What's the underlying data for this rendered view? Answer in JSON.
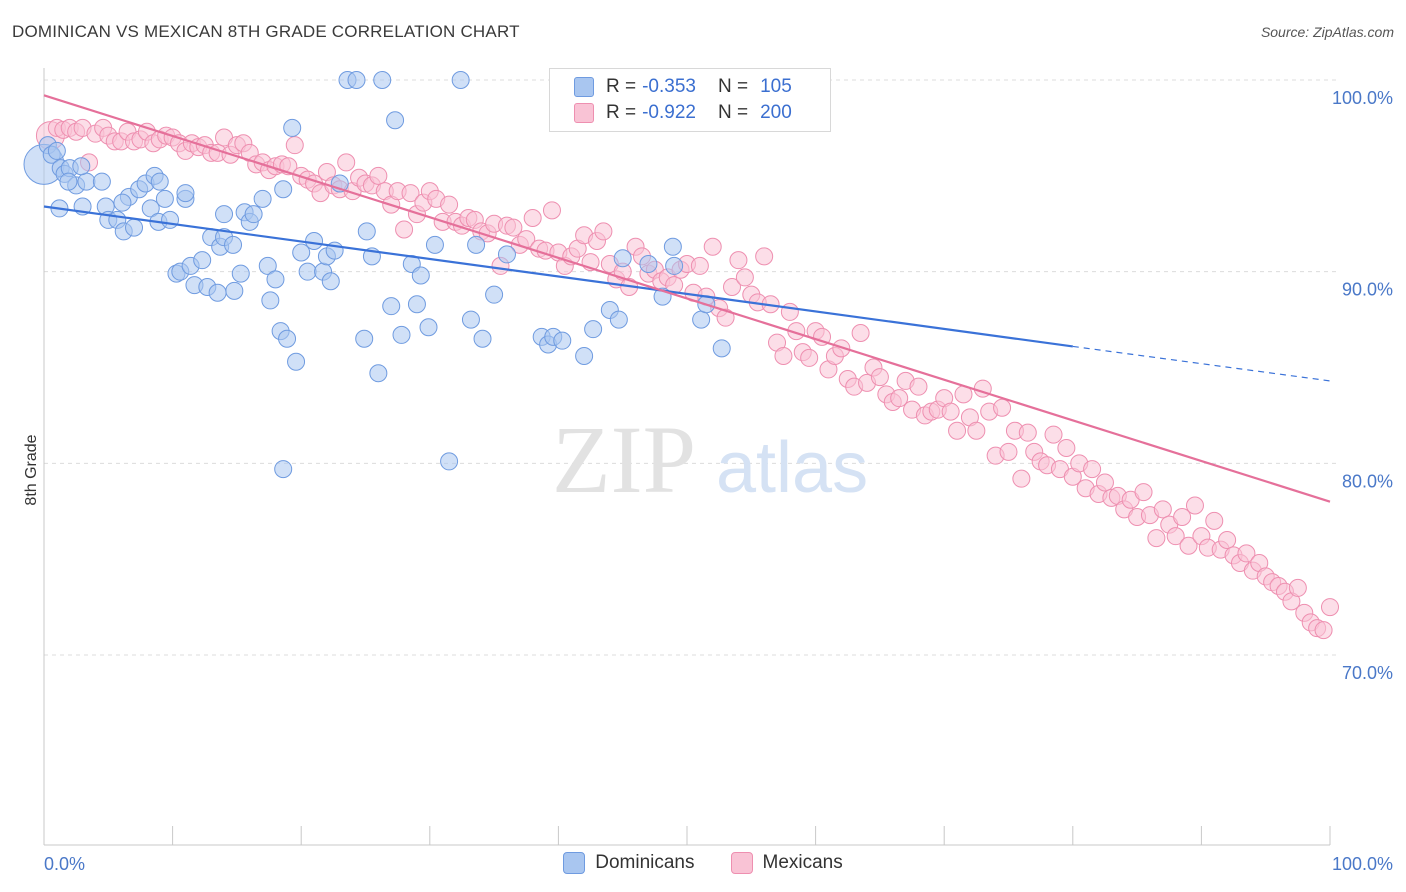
{
  "header": {
    "title": "DOMINICAN VS MEXICAN 8TH GRADE CORRELATION CHART",
    "source": "Source: ZipAtlas.com"
  },
  "watermark": {
    "zip": "ZIP",
    "atlas": "atlas"
  },
  "legend": {
    "rows": [
      {
        "r_label": "R =",
        "r_value": "-0.353",
        "n_label": "N =",
        "n_value": "105",
        "color": "#a9c6f0",
        "border": "#6f9be0"
      },
      {
        "r_label": "R =",
        "r_value": "-0.922",
        "n_label": "N =",
        "n_value": "200",
        "color": "#f9c3d5",
        "border": "#ee8fb0"
      }
    ]
  },
  "bottom_legend": [
    {
      "label": "Dominicans",
      "color": "#a9c6f0",
      "border": "#6f9be0"
    },
    {
      "label": "Mexicans",
      "color": "#f9c3d5",
      "border": "#ee8fb0"
    }
  ],
  "chart_data": {
    "type": "scatter",
    "title": "DOMINICAN VS MEXICAN 8TH GRADE CORRELATION CHART",
    "xlabel": "",
    "ylabel": "8th Grade",
    "x_tick_labels": [
      "0.0%",
      "100.0%"
    ],
    "y_tick_labels": [
      "100.0%",
      "90.0%",
      "80.0%",
      "70.0%"
    ],
    "y_ticks": [
      100,
      90,
      80,
      70
    ],
    "xlim": [
      0,
      100
    ],
    "ylim": [
      60,
      100.5
    ],
    "grid": true,
    "series": [
      {
        "name": "Dominicans",
        "color": "#6f9be0",
        "fill": "#a9c6f0",
        "trend": {
          "x0": 0,
          "y0": 93.4,
          "x1": 80,
          "y1": 86.1,
          "dash_to_x": 100,
          "dash_to_y": 84.3
        },
        "points": [
          [
            0,
            95.6
          ],
          [
            0.3,
            96.6
          ],
          [
            0.6,
            96.1
          ],
          [
            1,
            96.3
          ],
          [
            1.3,
            95.4
          ],
          [
            1.6,
            95.1
          ],
          [
            2,
            95.4
          ],
          [
            2.5,
            94.5
          ],
          [
            3,
            93.4
          ],
          [
            3.3,
            94.7
          ],
          [
            4.5,
            94.7
          ],
          [
            4.8,
            93.4
          ],
          [
            5,
            92.7
          ],
          [
            5.7,
            92.7
          ],
          [
            6.2,
            92.1
          ],
          [
            6.6,
            93.9
          ],
          [
            7,
            92.3
          ],
          [
            7.4,
            94.3
          ],
          [
            7.9,
            94.6
          ],
          [
            8.3,
            93.3
          ],
          [
            8.6,
            95.0
          ],
          [
            8.9,
            92.6
          ],
          [
            9,
            94.7
          ],
          [
            9.4,
            93.8
          ],
          [
            9.8,
            92.7
          ],
          [
            10.3,
            89.9
          ],
          [
            10.6,
            90.0
          ],
          [
            11,
            93.8
          ],
          [
            11,
            94.1
          ],
          [
            11.4,
            90.3
          ],
          [
            11.7,
            89.3
          ],
          [
            12.3,
            90.6
          ],
          [
            12.7,
            89.2
          ],
          [
            13,
            91.8
          ],
          [
            13.7,
            91.3
          ],
          [
            14,
            93.0
          ],
          [
            14,
            91.8
          ],
          [
            14.7,
            91.4
          ],
          [
            14.8,
            89.0
          ],
          [
            15.3,
            89.9
          ],
          [
            15.6,
            93.1
          ],
          [
            16,
            92.6
          ],
          [
            16.3,
            93.0
          ],
          [
            17,
            93.8
          ],
          [
            17.4,
            90.3
          ],
          [
            17.6,
            88.5
          ],
          [
            18,
            89.6
          ],
          [
            18.4,
            86.9
          ],
          [
            18.6,
            94.3
          ],
          [
            18.9,
            86.5
          ],
          [
            19.3,
            97.5
          ],
          [
            19.6,
            85.3
          ],
          [
            20,
            91.0
          ],
          [
            20.5,
            90.0
          ],
          [
            21,
            91.6
          ],
          [
            21.7,
            90.0
          ],
          [
            22,
            90.8
          ],
          [
            22.3,
            89.5
          ],
          [
            22.6,
            91.1
          ],
          [
            23,
            94.6
          ],
          [
            23.6,
            100
          ],
          [
            24.3,
            100
          ],
          [
            24.9,
            86.5
          ],
          [
            25.1,
            92.1
          ],
          [
            25.5,
            90.8
          ],
          [
            26,
            84.7
          ],
          [
            26.3,
            100
          ],
          [
            27,
            88.2
          ],
          [
            27.3,
            97.9
          ],
          [
            27.8,
            86.7
          ],
          [
            28.6,
            90.4
          ],
          [
            29,
            88.3
          ],
          [
            29.3,
            89.8
          ],
          [
            29.9,
            87.1
          ],
          [
            30.4,
            91.4
          ],
          [
            31.5,
            80.1
          ],
          [
            32.4,
            100
          ],
          [
            33.6,
            91.4
          ],
          [
            33.2,
            87.5
          ],
          [
            34.1,
            86.5
          ],
          [
            35,
            88.8
          ],
          [
            38.7,
            86.6
          ],
          [
            39.2,
            86.2
          ],
          [
            39.6,
            86.6
          ],
          [
            40.3,
            86.4
          ],
          [
            42,
            85.6
          ],
          [
            42.7,
            87.0
          ],
          [
            44,
            88.0
          ],
          [
            44.7,
            87.5
          ],
          [
            45,
            90.7
          ],
          [
            47,
            90.4
          ],
          [
            48.1,
            88.7
          ],
          [
            48.9,
            91.3
          ],
          [
            49,
            90.3
          ],
          [
            51.1,
            87.5
          ],
          [
            51.5,
            88.3
          ],
          [
            52.7,
            86.0
          ],
          [
            58.4,
            100
          ],
          [
            18.6,
            79.7
          ],
          [
            6.1,
            93.6
          ],
          [
            2.9,
            95.5
          ],
          [
            1.9,
            94.7
          ],
          [
            1.2,
            93.3
          ],
          [
            13.5,
            88.9
          ],
          [
            36,
            90.9
          ]
        ]
      },
      {
        "name": "Mexicans",
        "color": "#ee8fb0",
        "fill": "#f9c3d5",
        "trend": {
          "x0": 0,
          "y0": 99.2,
          "x1": 100,
          "y1": 78.0
        },
        "points": [
          [
            0.5,
            97.1
          ],
          [
            1,
            97.5
          ],
          [
            1.5,
            97.4
          ],
          [
            2,
            97.5
          ],
          [
            2.5,
            97.3
          ],
          [
            3,
            97.5
          ],
          [
            3.5,
            95.7
          ],
          [
            4,
            97.2
          ],
          [
            4.6,
            97.5
          ],
          [
            5,
            97.1
          ],
          [
            5.5,
            96.8
          ],
          [
            6,
            96.8
          ],
          [
            6.5,
            97.3
          ],
          [
            7,
            96.8
          ],
          [
            7.5,
            96.9
          ],
          [
            8,
            97.3
          ],
          [
            8.5,
            96.7
          ],
          [
            9,
            96.9
          ],
          [
            9.5,
            97.1
          ],
          [
            10,
            97.0
          ],
          [
            10.5,
            96.7
          ],
          [
            11,
            96.3
          ],
          [
            11.5,
            96.7
          ],
          [
            12,
            96.5
          ],
          [
            12.5,
            96.6
          ],
          [
            13,
            96.2
          ],
          [
            13.5,
            96.2
          ],
          [
            14,
            97.0
          ],
          [
            14.5,
            96.1
          ],
          [
            15,
            96.6
          ],
          [
            15.5,
            96.7
          ],
          [
            16,
            96.2
          ],
          [
            16.5,
            95.6
          ],
          [
            17,
            95.7
          ],
          [
            17.5,
            95.3
          ],
          [
            18,
            95.5
          ],
          [
            18.5,
            95.6
          ],
          [
            19,
            95.5
          ],
          [
            19.5,
            96.6
          ],
          [
            20,
            95.0
          ],
          [
            20.5,
            94.8
          ],
          [
            21,
            94.6
          ],
          [
            21.5,
            94.1
          ],
          [
            22,
            95.2
          ],
          [
            22.5,
            94.5
          ],
          [
            23,
            94.3
          ],
          [
            23.5,
            95.7
          ],
          [
            24,
            94.2
          ],
          [
            24.5,
            94.9
          ],
          [
            25,
            94.6
          ],
          [
            25.5,
            94.5
          ],
          [
            26,
            95.0
          ],
          [
            26.5,
            94.2
          ],
          [
            27,
            93.5
          ],
          [
            27.5,
            94.2
          ],
          [
            28,
            92.2
          ],
          [
            28.5,
            94.1
          ],
          [
            29,
            93.0
          ],
          [
            29.5,
            93.6
          ],
          [
            30,
            94.2
          ],
          [
            30.5,
            93.8
          ],
          [
            31,
            92.6
          ],
          [
            31.5,
            93.5
          ],
          [
            32,
            92.6
          ],
          [
            32.5,
            92.4
          ],
          [
            33,
            92.8
          ],
          [
            33.5,
            92.7
          ],
          [
            34,
            92.1
          ],
          [
            34.5,
            92.0
          ],
          [
            35,
            92.5
          ],
          [
            35.5,
            90.3
          ],
          [
            36,
            92.4
          ],
          [
            36.5,
            92.3
          ],
          [
            37,
            91.4
          ],
          [
            37.5,
            91.7
          ],
          [
            38,
            92.8
          ],
          [
            38.5,
            91.2
          ],
          [
            39,
            91.1
          ],
          [
            39.5,
            93.2
          ],
          [
            40,
            91.0
          ],
          [
            40.5,
            90.3
          ],
          [
            41,
            90.8
          ],
          [
            41.5,
            91.2
          ],
          [
            42,
            91.9
          ],
          [
            42.5,
            90.5
          ],
          [
            43,
            91.6
          ],
          [
            43.5,
            92.1
          ],
          [
            44,
            90.4
          ],
          [
            44.5,
            89.6
          ],
          [
            45,
            90.0
          ],
          [
            45.5,
            89.2
          ],
          [
            46,
            91.3
          ],
          [
            46.5,
            90.8
          ],
          [
            47,
            89.9
          ],
          [
            47.5,
            90.1
          ],
          [
            48,
            89.5
          ],
          [
            48.5,
            89.7
          ],
          [
            49,
            89.3
          ],
          [
            49.5,
            90.1
          ],
          [
            50,
            90.4
          ],
          [
            50.5,
            88.9
          ],
          [
            51,
            90.3
          ],
          [
            51.5,
            88.7
          ],
          [
            52,
            91.3
          ],
          [
            52.5,
            88.1
          ],
          [
            53,
            87.6
          ],
          [
            53.5,
            89.2
          ],
          [
            54,
            90.6
          ],
          [
            54.5,
            89.7
          ],
          [
            55,
            88.8
          ],
          [
            55.5,
            88.4
          ],
          [
            56,
            90.8
          ],
          [
            56.5,
            88.3
          ],
          [
            57,
            86.3
          ],
          [
            57.5,
            85.6
          ],
          [
            58,
            87.9
          ],
          [
            58.5,
            86.9
          ],
          [
            59,
            85.8
          ],
          [
            59.5,
            85.5
          ],
          [
            60,
            86.9
          ],
          [
            60.5,
            86.6
          ],
          [
            61,
            84.9
          ],
          [
            61.5,
            85.6
          ],
          [
            62,
            86.0
          ],
          [
            62.5,
            84.4
          ],
          [
            63,
            84.0
          ],
          [
            63.5,
            86.8
          ],
          [
            64,
            84.2
          ],
          [
            64.5,
            85.0
          ],
          [
            65,
            84.5
          ],
          [
            65.5,
            83.6
          ],
          [
            66,
            83.2
          ],
          [
            66.5,
            83.4
          ],
          [
            67,
            84.3
          ],
          [
            67.5,
            82.8
          ],
          [
            68,
            84.0
          ],
          [
            68.5,
            82.5
          ],
          [
            69,
            82.7
          ],
          [
            69.5,
            82.8
          ],
          [
            70,
            83.4
          ],
          [
            70.5,
            82.7
          ],
          [
            71,
            81.7
          ],
          [
            71.5,
            83.6
          ],
          [
            72,
            82.4
          ],
          [
            72.5,
            81.7
          ],
          [
            73,
            83.9
          ],
          [
            73.5,
            82.7
          ],
          [
            74,
            80.4
          ],
          [
            74.5,
            82.9
          ],
          [
            75,
            80.6
          ],
          [
            75.5,
            81.7
          ],
          [
            76,
            79.2
          ],
          [
            76.5,
            81.6
          ],
          [
            77,
            80.6
          ],
          [
            77.5,
            80.1
          ],
          [
            78,
            79.9
          ],
          [
            78.5,
            81.5
          ],
          [
            79,
            79.7
          ],
          [
            79.5,
            80.8
          ],
          [
            80,
            79.3
          ],
          [
            80.5,
            80.0
          ],
          [
            81,
            78.7
          ],
          [
            81.5,
            79.7
          ],
          [
            82,
            78.4
          ],
          [
            82.5,
            79.0
          ],
          [
            83,
            78.2
          ],
          [
            83.5,
            78.3
          ],
          [
            84,
            77.6
          ],
          [
            84.5,
            78.1
          ],
          [
            85,
            77.2
          ],
          [
            85.5,
            78.5
          ],
          [
            86,
            77.3
          ],
          [
            86.5,
            76.1
          ],
          [
            87,
            77.6
          ],
          [
            87.5,
            76.8
          ],
          [
            88,
            76.2
          ],
          [
            88.5,
            77.2
          ],
          [
            89,
            75.7
          ],
          [
            89.5,
            77.8
          ],
          [
            90,
            76.2
          ],
          [
            90.5,
            75.6
          ],
          [
            91,
            77.0
          ],
          [
            91.5,
            75.5
          ],
          [
            92,
            76.0
          ],
          [
            92.5,
            75.2
          ],
          [
            93,
            74.8
          ],
          [
            93.5,
            75.3
          ],
          [
            94,
            74.4
          ],
          [
            94.5,
            74.8
          ],
          [
            95,
            74.1
          ],
          [
            95.5,
            73.8
          ],
          [
            96,
            73.6
          ],
          [
            96.5,
            73.3
          ],
          [
            97,
            72.8
          ],
          [
            97.5,
            73.5
          ],
          [
            98,
            72.2
          ],
          [
            98.5,
            71.7
          ],
          [
            99,
            71.4
          ],
          [
            99.5,
            71.3
          ],
          [
            100,
            72.5
          ]
        ]
      }
    ]
  }
}
